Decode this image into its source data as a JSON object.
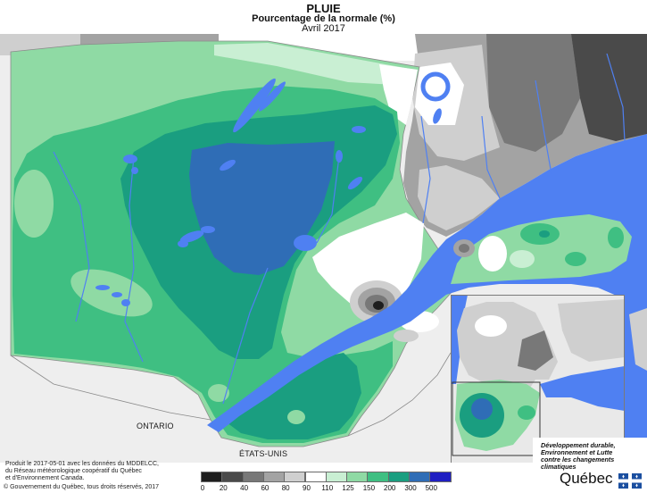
{
  "title": "PLUIE",
  "subtitle": "Pourcentage de la normale (%)",
  "period": "Avril 2017",
  "map": {
    "labels": {
      "ontario": "ONTARIO",
      "usa": "ÉTATS-UNIS"
    },
    "water_color": "#4f80f2",
    "background_color": "#eeeeee"
  },
  "credits": {
    "line1": "Produit le 2017-05-01 avec les données du MDDELCC,",
    "line2": "du Réseau météorologique coopératif du Québec",
    "line3": "et d'Environnement Canada.",
    "copyright": "© Gouvernement du Québec, tous droits réservés, 2017"
  },
  "legend": {
    "classes": [
      {
        "value": "0",
        "color": "#1e1e1e"
      },
      {
        "value": "20",
        "color": "#4a4a4a"
      },
      {
        "value": "40",
        "color": "#787878"
      },
      {
        "value": "60",
        "color": "#a3a3a3"
      },
      {
        "value": "80",
        "color": "#cfcfcf"
      },
      {
        "value": "90",
        "color": "#ffffff"
      },
      {
        "value": "110",
        "color": "#c9efd3"
      },
      {
        "value": "125",
        "color": "#8fdaa4"
      },
      {
        "value": "150",
        "color": "#3fbf82"
      },
      {
        "value": "200",
        "color": "#1a9e80"
      },
      {
        "value": "300",
        "color": "#2f6db6"
      },
      {
        "value": "500",
        "color": "#1f1fc2"
      }
    ]
  },
  "logo": {
    "line1": "Développement durable,",
    "line2": "Environnement et Lutte",
    "line3": "contre les changements",
    "line4": "climatiques",
    "wordmark": "Québec",
    "flag_color": "#1b4fa0"
  }
}
